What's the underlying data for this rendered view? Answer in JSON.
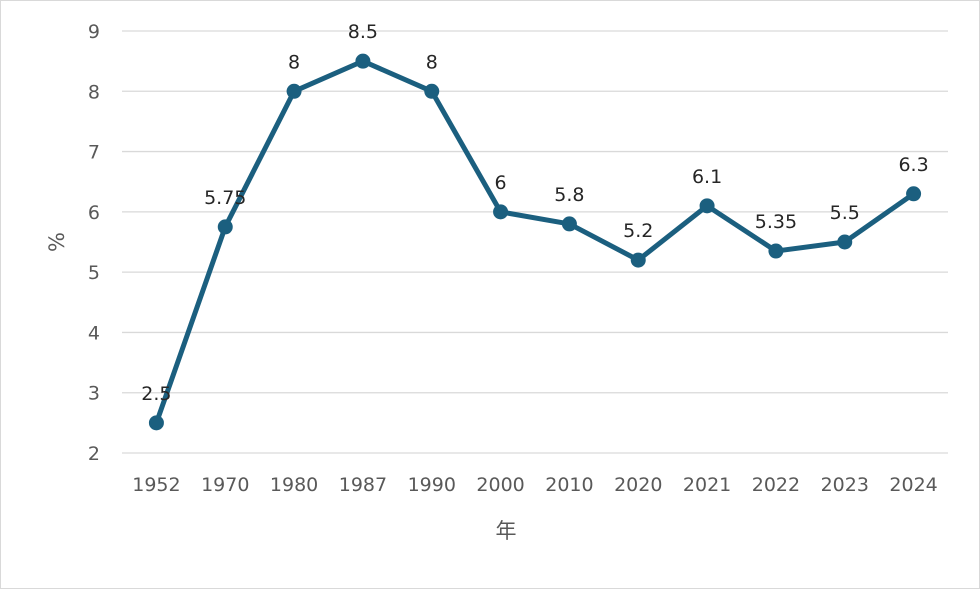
{
  "chart_data": {
    "type": "line",
    "title": "",
    "xlabel": "年",
    "ylabel": "%",
    "categories": [
      "1952",
      "1970",
      "1980",
      "1987",
      "1990",
      "2000",
      "2010",
      "2020",
      "2021",
      "2022",
      "2023",
      "2024"
    ],
    "series": [
      {
        "name": "",
        "values": [
          2.5,
          5.75,
          8,
          8.5,
          8,
          6,
          5.8,
          5.2,
          6.1,
          5.35,
          5.5,
          6.3
        ],
        "labels": [
          "2.5",
          "5.75",
          "8",
          "8.5",
          "8",
          "6",
          "5.8",
          "5.2",
          "6.1",
          "5.35",
          "5.5",
          "6.3"
        ]
      }
    ],
    "ylim": [
      2,
      9
    ],
    "yticks": [
      "2",
      "3",
      "4",
      "5",
      "6",
      "7",
      "8",
      "9"
    ],
    "grid": true,
    "colors": {
      "line": "#1b5f7f",
      "grid": "#d9d9d9",
      "tick_text": "#595959",
      "label_text": "#262626"
    }
  }
}
